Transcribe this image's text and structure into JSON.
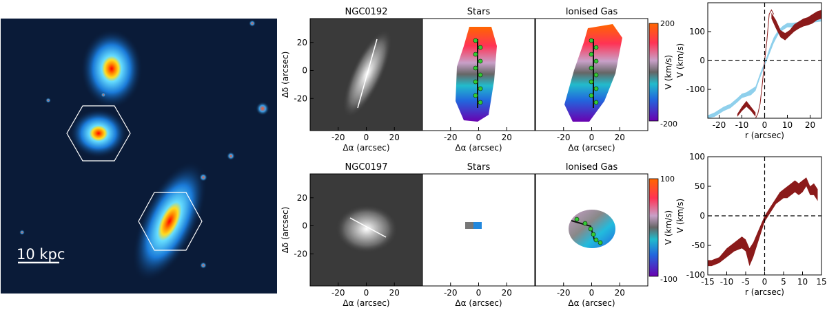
{
  "figure": {
    "colors": {
      "ink": "#000000",
      "curve": "#8b1a1a",
      "band": "#8fd0ec",
      "scale_bar": "#ffffff"
    }
  },
  "overview": {
    "scale_bar_label": "10 kpc"
  },
  "maps": {
    "xlabel": "Δα (arcsec)",
    "ylabel": "Δδ (arcsec)",
    "x_ticks": [
      -20,
      0,
      20
    ],
    "y_ticks": [
      20,
      0,
      -20
    ],
    "rows": [
      {
        "galaxy": "NGC0192",
        "panels": [
          "NGC0192",
          "Stars",
          "Ionised Gas"
        ],
        "colorbar": {
          "label": "V (km/s)",
          "max": 200,
          "min": -200,
          "max_label": "200",
          "min_label": "-200"
        }
      },
      {
        "galaxy": "NGC0197",
        "panels": [
          "NGC0197",
          "Stars",
          "Ionised Gas"
        ],
        "colorbar": {
          "label": "V (km/s)",
          "max": 100,
          "min": -100,
          "max_label": "100",
          "min_label": "-100"
        }
      }
    ]
  },
  "chart_data": [
    {
      "type": "line",
      "xlabel": "r (arcsec)",
      "ylabel": "V (km/s)",
      "xlim": [
        -25,
        25
      ],
      "ylim": [
        -200,
        200
      ],
      "x_ticks": [
        -20,
        -10,
        0,
        10,
        20
      ],
      "y_ticks": [
        -100,
        0,
        100
      ],
      "reference_lines": {
        "x": 0,
        "y": 0,
        "style": "dashed"
      },
      "series": [
        {
          "kind": "band",
          "color": "#8fd0ec",
          "x": [
            -25,
            -22,
            -18,
            -15,
            -12,
            -10,
            -8,
            -6,
            -4,
            -2,
            -1,
            0,
            1,
            2,
            4,
            6,
            8,
            10,
            12,
            14,
            16,
            18,
            20,
            22,
            25
          ],
          "y_low": [
            -200,
            -195,
            -175,
            -165,
            -145,
            -130,
            -125,
            -120,
            -105,
            -60,
            -40,
            -18,
            0,
            20,
            60,
            90,
            105,
            115,
            115,
            118,
            122,
            125,
            128,
            132,
            135
          ],
          "y_high": [
            -190,
            -180,
            -160,
            -150,
            -130,
            -115,
            -110,
            -100,
            -90,
            -45,
            -25,
            -5,
            15,
            40,
            80,
            105,
            120,
            130,
            130,
            132,
            136,
            140,
            143,
            146,
            150
          ]
        },
        {
          "kind": "band",
          "color": "#8b1a1a",
          "x": [
            -12,
            -10,
            -8,
            -6,
            -4
          ],
          "y_low": [
            -195,
            -175,
            -160,
            -175,
            -195
          ],
          "y_high": [
            -185,
            -160,
            -140,
            -160,
            -180
          ]
        },
        {
          "kind": "line",
          "color": "#8b1a1a",
          "x": [
            -4,
            -3,
            -2,
            -1,
            0,
            1,
            2,
            3,
            4
          ],
          "y": [
            -200,
            -185,
            -150,
            -80,
            0,
            70,
            160,
            175,
            160
          ]
        },
        {
          "kind": "band",
          "color": "#8b1a1a",
          "x": [
            3,
            5,
            7,
            9,
            11,
            13,
            15,
            17,
            19,
            21,
            23,
            25
          ],
          "y_low": [
            145,
            110,
            80,
            70,
            85,
            100,
            110,
            118,
            122,
            128,
            140,
            145
          ],
          "y_high": [
            165,
            140,
            105,
            95,
            105,
            125,
            135,
            145,
            150,
            160,
            170,
            175
          ]
        }
      ]
    },
    {
      "type": "area",
      "xlabel": "r (arcsec)",
      "ylabel": "V (km/s)",
      "xlim": [
        -15,
        15
      ],
      "ylim": [
        -100,
        100
      ],
      "x_ticks": [
        -15,
        -10,
        -5,
        0,
        5,
        10,
        15
      ],
      "y_ticks": [
        -100,
        -50,
        0,
        50,
        100
      ],
      "reference_lines": {
        "x": 0,
        "y": 0,
        "style": "dashed"
      },
      "series": [
        {
          "kind": "band",
          "color": "#8b1a1a",
          "x": [
            -15,
            -14,
            -12,
            -10,
            -8,
            -6,
            -5,
            -4,
            -3,
            -2,
            -1,
            0,
            1,
            2,
            3,
            4,
            5,
            6,
            7,
            8,
            9,
            10,
            11,
            12,
            13,
            14
          ],
          "y_low": [
            -85,
            -85,
            -80,
            -70,
            -60,
            -55,
            -60,
            -85,
            -70,
            -50,
            -30,
            -10,
            0,
            10,
            20,
            25,
            30,
            30,
            35,
            40,
            35,
            40,
            50,
            35,
            35,
            25
          ],
          "y_high": [
            -75,
            -75,
            -70,
            -55,
            -45,
            -35,
            -40,
            -55,
            -45,
            -30,
            -15,
            0,
            10,
            20,
            30,
            40,
            45,
            50,
            55,
            60,
            55,
            60,
            65,
            50,
            55,
            45
          ]
        }
      ]
    }
  ]
}
